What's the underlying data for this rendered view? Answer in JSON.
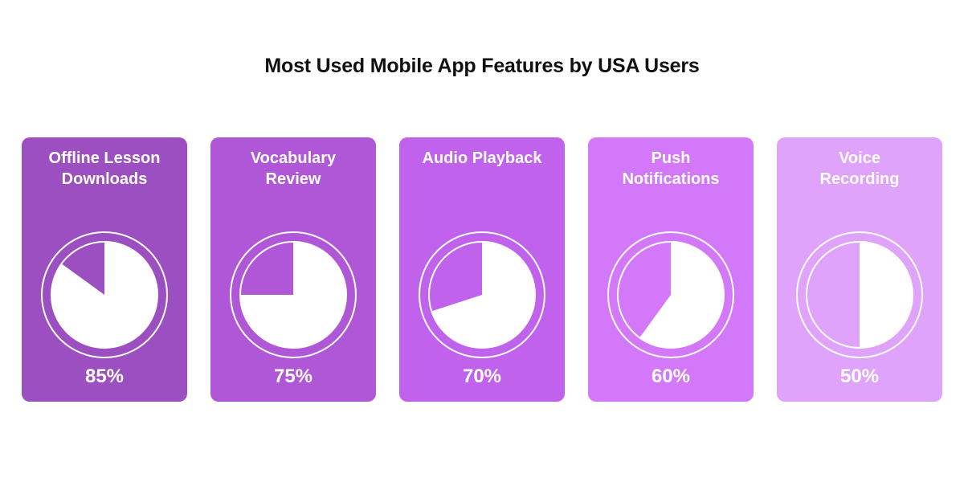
{
  "title": "Most Used Mobile App Features by USA Users",
  "cards": [
    {
      "label_line1": "Offline Lesson",
      "label_line2": "Downloads",
      "value": 85,
      "value_label": "85%",
      "color": "#9B4FC0"
    },
    {
      "label_line1": "Vocabulary",
      "label_line2": "Review",
      "value": 75,
      "value_label": "75%",
      "color": "#B057D8"
    },
    {
      "label_line1": "Audio Playback",
      "label_line2": "",
      "value": 70,
      "value_label": "70%",
      "color": "#C162EC"
    },
    {
      "label_line1": "Push",
      "label_line2": "Notifications",
      "value": 60,
      "value_label": "60%",
      "color": "#D478FA"
    },
    {
      "label_line1": "Voice",
      "label_line2": "Recording",
      "value": 50,
      "value_label": "50%",
      "color": "#E0A3FC"
    }
  ],
  "chart_data": {
    "type": "pie",
    "title": "Most Used Mobile App Features by USA Users",
    "categories": [
      "Offline Lesson Downloads",
      "Vocabulary Review",
      "Audio Playback",
      "Push Notifications",
      "Voice Recording"
    ],
    "values": [
      85,
      75,
      70,
      60,
      50
    ],
    "unit": "%",
    "xlabel": "",
    "ylabel": "",
    "legend": "none",
    "grid": false,
    "note": "Each feature shown as its own card with a single-value pie gauge (white filled portion = percentage, drawn clockwise from 12 o'clock)."
  }
}
